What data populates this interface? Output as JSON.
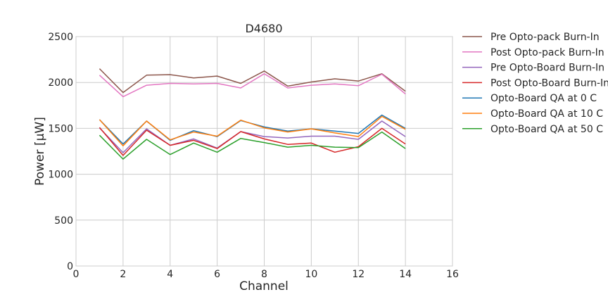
{
  "chart_data": {
    "type": "line",
    "title": "D4680",
    "xlabel": "Channel",
    "ylabel": "Power [μW]",
    "xlim": [
      0,
      16
    ],
    "ylim": [
      0,
      2500
    ],
    "xticks": [
      0,
      2,
      4,
      6,
      8,
      10,
      12,
      14,
      16
    ],
    "yticks": [
      0,
      500,
      1000,
      1500,
      2000,
      2500
    ],
    "grid": true,
    "legend_position": "outside-right",
    "x": [
      1,
      2,
      3,
      4,
      5,
      6,
      7,
      8,
      9,
      10,
      11,
      12,
      13,
      14
    ],
    "series": [
      {
        "name": "Pre Opto-pack Burn-In",
        "color": "#8c564b",
        "values": [
          2150,
          1890,
          2080,
          2085,
          2050,
          2070,
          1990,
          2125,
          1960,
          2005,
          2040,
          2015,
          2095,
          1905
        ]
      },
      {
        "name": "Post Opto-pack Burn-In",
        "color": "#e377c2",
        "values": [
          2080,
          1845,
          1970,
          1990,
          1985,
          1990,
          1940,
          2095,
          1940,
          1970,
          1985,
          1965,
          2090,
          1875
        ]
      },
      {
        "name": "Pre Opto-Board Burn-In",
        "color": "#9467bd",
        "values": [
          1505,
          1235,
          1495,
          1315,
          1385,
          1285,
          1465,
          1410,
          1395,
          1415,
          1415,
          1380,
          1580,
          1410
        ]
      },
      {
        "name": "Post Opto-Board Burn-In",
        "color": "#d62728",
        "values": [
          1510,
          1205,
          1480,
          1315,
          1370,
          1280,
          1465,
          1385,
          1325,
          1340,
          1240,
          1300,
          1500,
          1330
        ]
      },
      {
        "name": "Opto-Board QA at 0 C",
        "color": "#1f77b4",
        "values": [
          1595,
          1330,
          1580,
          1370,
          1475,
          1410,
          1585,
          1515,
          1470,
          1495,
          1470,
          1445,
          1645,
          1500
        ]
      },
      {
        "name": "Opto-Board QA at 10 C",
        "color": "#ff7f0e",
        "values": [
          1595,
          1310,
          1580,
          1375,
          1460,
          1415,
          1590,
          1505,
          1460,
          1495,
          1450,
          1410,
          1630,
          1490
        ]
      },
      {
        "name": "Opto-Board QA at 50 C",
        "color": "#2ca02c",
        "values": [
          1425,
          1165,
          1380,
          1215,
          1340,
          1240,
          1390,
          1345,
          1295,
          1315,
          1295,
          1290,
          1460,
          1280
        ]
      }
    ]
  }
}
